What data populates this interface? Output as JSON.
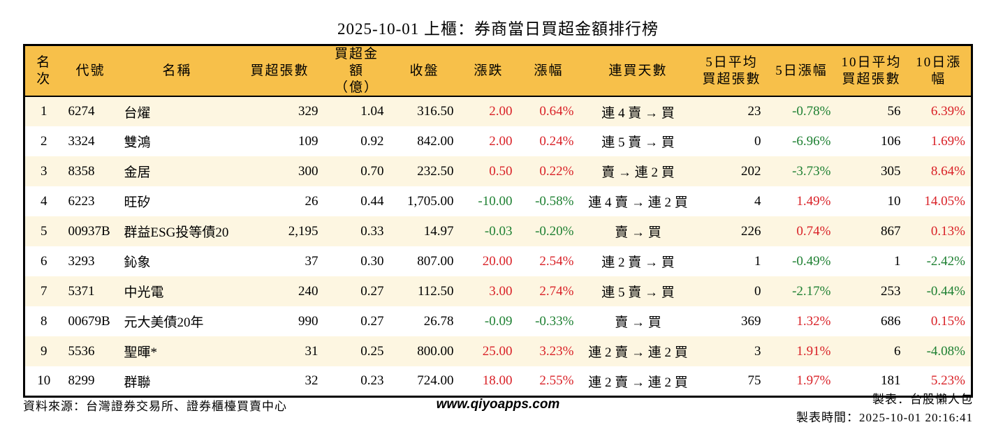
{
  "title": "2025-10-01 上櫃：券商當日買超金額排行榜",
  "colors": {
    "header_bg": "#F7C04A",
    "row_odd_bg": "#FDF6E1",
    "row_even_bg": "#FFFFFF",
    "up_red": "#D92127",
    "down_green": "#1E8032",
    "border": "#000000"
  },
  "table": {
    "headers": [
      "名次",
      "代號",
      "名稱",
      "買超張數",
      "買超金額\n（億）",
      "收盤",
      "漲跌",
      "漲幅",
      "連買天數",
      "5日平均\n買超張數",
      "5日漲幅",
      "10日平均\n買超張數",
      "10日漲幅"
    ],
    "rows": [
      {
        "rank": "1",
        "code": "6274",
        "name": "台燿",
        "volume": "329",
        "amount": "1.04",
        "close": "316.50",
        "change": "2.00",
        "change_dir": "up",
        "change_pct": "0.64%",
        "change_pct_dir": "up",
        "streak": "連 4 賣 → 買",
        "avg5": "23",
        "pct5": "-0.78%",
        "pct5_dir": "down",
        "avg10": "56",
        "pct10": "6.39%",
        "pct10_dir": "up"
      },
      {
        "rank": "2",
        "code": "3324",
        "name": "雙鴻",
        "volume": "109",
        "amount": "0.92",
        "close": "842.00",
        "change": "2.00",
        "change_dir": "up",
        "change_pct": "0.24%",
        "change_pct_dir": "up",
        "streak": "連 5 賣 → 買",
        "avg5": "0",
        "pct5": "-6.96%",
        "pct5_dir": "down",
        "avg10": "106",
        "pct10": "1.69%",
        "pct10_dir": "up"
      },
      {
        "rank": "3",
        "code": "8358",
        "name": "金居",
        "volume": "300",
        "amount": "0.70",
        "close": "232.50",
        "change": "0.50",
        "change_dir": "up",
        "change_pct": "0.22%",
        "change_pct_dir": "up",
        "streak": "賣 → 連 2 買",
        "avg5": "202",
        "pct5": "-3.73%",
        "pct5_dir": "down",
        "avg10": "305",
        "pct10": "8.64%",
        "pct10_dir": "up"
      },
      {
        "rank": "4",
        "code": "6223",
        "name": "旺矽",
        "volume": "26",
        "amount": "0.44",
        "close": "1,705.00",
        "change": "-10.00",
        "change_dir": "down",
        "change_pct": "-0.58%",
        "change_pct_dir": "down",
        "streak": "連 4 賣 → 連 2 買",
        "avg5": "4",
        "pct5": "1.49%",
        "pct5_dir": "up",
        "avg10": "10",
        "pct10": "14.05%",
        "pct10_dir": "up"
      },
      {
        "rank": "5",
        "code": "00937B",
        "name": "群益ESG投等債20",
        "volume": "2,195",
        "amount": "0.33",
        "close": "14.97",
        "change": "-0.03",
        "change_dir": "down",
        "change_pct": "-0.20%",
        "change_pct_dir": "down",
        "streak": "賣 → 買",
        "avg5": "226",
        "pct5": "0.74%",
        "pct5_dir": "up",
        "avg10": "867",
        "pct10": "0.13%",
        "pct10_dir": "up"
      },
      {
        "rank": "6",
        "code": "3293",
        "name": "鈊象",
        "volume": "37",
        "amount": "0.30",
        "close": "807.00",
        "change": "20.00",
        "change_dir": "up",
        "change_pct": "2.54%",
        "change_pct_dir": "up",
        "streak": "連 2 賣 → 買",
        "avg5": "1",
        "pct5": "-0.49%",
        "pct5_dir": "down",
        "avg10": "1",
        "pct10": "-2.42%",
        "pct10_dir": "down"
      },
      {
        "rank": "7",
        "code": "5371",
        "name": "中光電",
        "volume": "240",
        "amount": "0.27",
        "close": "112.50",
        "change": "3.00",
        "change_dir": "up",
        "change_pct": "2.74%",
        "change_pct_dir": "up",
        "streak": "連 5 賣 → 買",
        "avg5": "0",
        "pct5": "-2.17%",
        "pct5_dir": "down",
        "avg10": "253",
        "pct10": "-0.44%",
        "pct10_dir": "down"
      },
      {
        "rank": "8",
        "code": "00679B",
        "name": "元大美債20年",
        "volume": "990",
        "amount": "0.27",
        "close": "26.78",
        "change": "-0.09",
        "change_dir": "down",
        "change_pct": "-0.33%",
        "change_pct_dir": "down",
        "streak": "賣 → 買",
        "avg5": "369",
        "pct5": "1.32%",
        "pct5_dir": "up",
        "avg10": "686",
        "pct10": "0.15%",
        "pct10_dir": "up"
      },
      {
        "rank": "9",
        "code": "5536",
        "name": "聖暉*",
        "volume": "31",
        "amount": "0.25",
        "close": "800.00",
        "change": "25.00",
        "change_dir": "up",
        "change_pct": "3.23%",
        "change_pct_dir": "up",
        "streak": "連 2 賣 → 連 2 買",
        "avg5": "3",
        "pct5": "1.91%",
        "pct5_dir": "up",
        "avg10": "6",
        "pct10": "-4.08%",
        "pct10_dir": "down"
      },
      {
        "rank": "10",
        "code": "8299",
        "name": "群聯",
        "volume": "32",
        "amount": "0.23",
        "close": "724.00",
        "change": "18.00",
        "change_dir": "up",
        "change_pct": "2.55%",
        "change_pct_dir": "up",
        "streak": "連 2 賣 → 連 2 買",
        "avg5": "75",
        "pct5": "1.97%",
        "pct5_dir": "up",
        "avg10": "181",
        "pct10": "5.23%",
        "pct10_dir": "up"
      }
    ]
  },
  "footer": {
    "source": "資料來源：台灣證券交易所、證券櫃檯買賣中心",
    "website": "www.qiyoapps.com",
    "maker": "製表：台股懶人包",
    "made_time": "製表時間：2025-10-01 20:16:41"
  }
}
